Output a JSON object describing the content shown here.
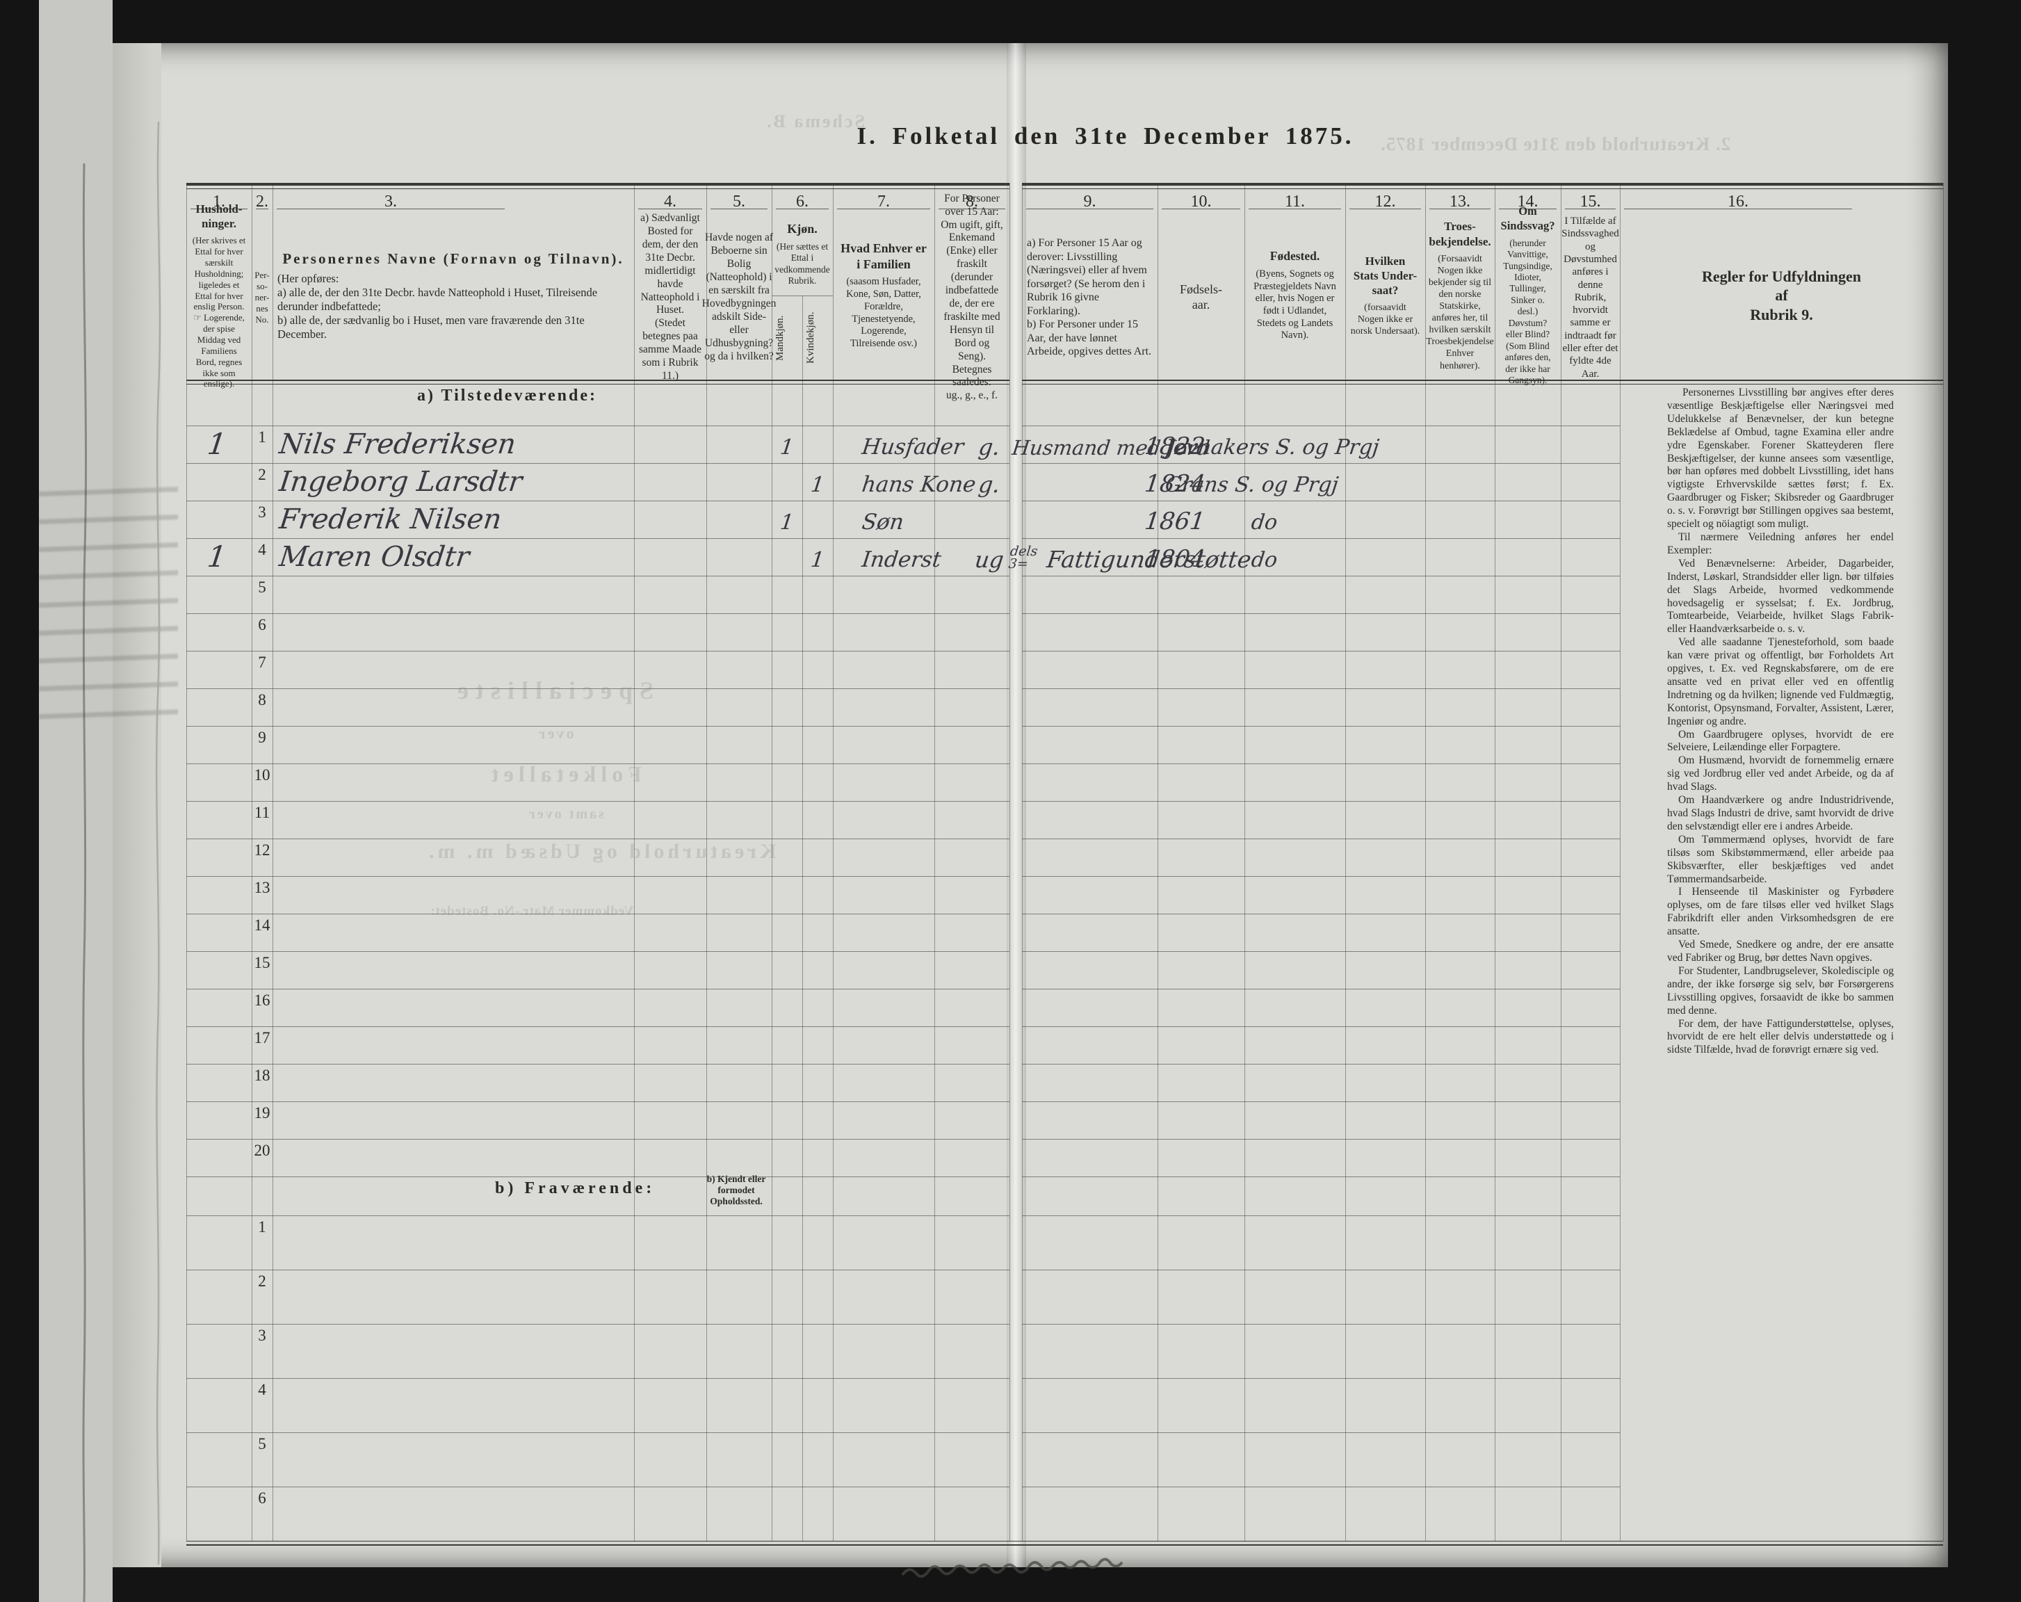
{
  "page": {
    "title": "I. Folketal den 31te December 1875.",
    "section_a_label": "a) Tilstedeværende:",
    "section_b_label": "b) Fraværende:",
    "section_b_sublabel": "b) Kjendt eller formodet Opholdssted."
  },
  "table": {
    "row_count_present": 20,
    "row_count_absent": 6,
    "columns": [
      {
        "no": "1.",
        "title": "Hushold-\nninger.",
        "note": "(Her skrives et Ettal for hver særskilt Husholdning; ligeledes et Ettal for hver enslig Person.\n☞ Logerende, der spise Middag ved Familiens Bord, regnes ikke som enslige)."
      },
      {
        "no": "2.",
        "title": "",
        "note": "Per-\nso-\nner-\nnes\nNo."
      },
      {
        "no": "3.",
        "title": "Personernes Navne (Fornavn og Tilnavn).",
        "note": "(Her opføres:\na) alle de, der den 31te Decbr. havde Natteophold i Huset, Tilreisende derunder indbefattede;\nb) alle de, der sædvanlig bo i Huset, men vare fraværende den 31te December."
      },
      {
        "no": "4.",
        "title": "",
        "note": "a) Sædvanligt Bosted for dem, der den 31te Decbr. midlertidigt havde Natteophold i Huset.\n(Stedet betegnes paa samme Maade som i Rubrik 11.)"
      },
      {
        "no": "5.",
        "title": "",
        "note": "Havde nogen af Beboerne sin Bolig (Natteophold) i en særskilt fra Hovedbygningen adskilt Side- eller Udhusbygning? og da i hvilken?"
      },
      {
        "no": "6.",
        "title": "Kjøn.",
        "note": "(Her sættes et Ettal i vedkommende Rubrik.",
        "sub_labels": [
          "Mandkjøn.",
          "Kvindekjøn."
        ]
      },
      {
        "no": "7.",
        "title": "Hvad Enhver er\ni Familien",
        "note": "(saasom Husfader, Kone, Søn, Datter, Forældre, Tjenestetyende, Logerende, Tilreisende osv.)"
      },
      {
        "no": "8.",
        "title": "",
        "note": "For Personer over 15 Aar: Om ugift, gift, Enkemand (Enke) eller fraskilt (derunder indbefattede de, der ere fraskilte med Hensyn til Bord og Seng).\nBetegnes saaledes:\nug., g., e., f."
      },
      {
        "no": "9.",
        "title": "",
        "note": "a) For Personer 15 Aar og derover: Livsstilling (Næringsvei) eller af hvem forsørget? (Se herom den i Rubrik 16 givne Forklaring).\nb) For Personer under 15 Aar, der have lønnet Arbeide, opgives dettes Art."
      },
      {
        "no": "10.",
        "title": "",
        "note": "Fødsels-\naar."
      },
      {
        "no": "11.",
        "title": "Fødested.",
        "note": "(Byens, Sognets og Præstegjeldets Navn eller, hvis Nogen er født i Udlandet, Stedets og Landets Navn)."
      },
      {
        "no": "12.",
        "title": "Hvilken\nStats Under-\nsaat?",
        "note": "(forsaavidt Nogen ikke er norsk Undersaat)."
      },
      {
        "no": "13.",
        "title": "Troes-\nbekjendelse.",
        "note": "(Forsaavidt Nogen ikke bekjender sig til den norske Statskirke, anføres her, til hvilken særskilt Troesbekjendelse Enhver henhører)."
      },
      {
        "no": "14.",
        "title": "Om\nSindssvag?",
        "note": "(herunder Vanvittige, Tungsindige, Idioter, Tullinger, Sinker o. desl.)\nDøvstum?\neller Blind?\n(Som Blind anføres den, der ikke har Gangsyn)."
      },
      {
        "no": "15.",
        "title": "",
        "note": "I Tilfælde af Sindssvaghed og Døvstumhed anføres i denne Rubrik, hvorvidt samme er indtraadt før eller efter det fyldte 4de Aar."
      },
      {
        "no": "16.",
        "title": "Regler for Udfyldningen\naf\nRubrik 9.",
        "note": ""
      }
    ]
  },
  "entries": [
    {
      "row": 1,
      "household": "1",
      "name": "Nils Frederiksen",
      "male": "1",
      "family_position": "Husfader",
      "marital": "g.",
      "occupation": "Husmand med Jord",
      "birth_year": "1822",
      "birthplace": "Jevnakers S. og Prgj"
    },
    {
      "row": 2,
      "name": "Ingeborg Larsdtr",
      "female": "1",
      "family_position": "hans Kone",
      "marital": "g.",
      "birth_year": "1824",
      "birthplace": "Grans S. og Prgj"
    },
    {
      "row": 3,
      "name": "Frederik Nilsen",
      "male": "1",
      "family_position": "Søn",
      "birth_year": "1861",
      "birthplace": "do"
    },
    {
      "row": 4,
      "household": "1",
      "name": "Maren Olsdtr",
      "female": "1",
      "family_position": "Inderst",
      "marital": "ug",
      "occupation_prefix": "dels\n3=",
      "occupation": "Fattigunderstøtte",
      "birth_year": "1804",
      "birthplace": "do"
    }
  ],
  "rules_column": {
    "paragraphs": [
      "Personernes Livsstilling bør angives efter deres væsentlige Beskjæftigelse eller Næringsvei med Udelukkelse af Benævnelser, der kun betegne Beklædelse af Ombud, tagne Examina eller andre ydre Egenskaber. Forener Skatteyderen flere Beskjæftigelser, der kunne ansees som væsentlige, bør han opføres med dobbelt Livsstilling, idet hans vigtigste Erhvervskilde sættes først; f. Ex. Gaardbruger og Fisker; Skibsreder og Gaardbruger o. s. v. Forøvrigt bør Stillingen opgives saa bestemt, specielt og nöiagtigt som muligt.",
      "Til nærmere Veiledning anføres her endel Exempler:",
      "Ved Benævnelserne: Arbeider, Dagarbeider, Inderst, Løskarl, Strandsidder eller lign. bør tilføies det Slags Arbeide, hvormed vedkommende hovedsagelig er sysselsat; f. Ex. Jordbrug, Tomtearbeide, Veiarbeide, hvilket Slags Fabrik- eller Haandværksarbeide o. s. v.",
      "Ved alle saadanne Tjenesteforhold, som baade kan være privat og offentligt, bør Forholdets Art opgives, t. Ex. ved Regnskabsførere, om de ere ansatte ved en privat eller ved en offentlig Indretning og da hvilken; lignende ved Fuldmægtig, Kontorist, Opsynsmand, Forvalter, Assistent, Lærer, Ingeniør og andre.",
      "Om Gaardbrugere oplyses, hvorvidt de ere Selveiere, Leilændinge eller Forpagtere.",
      "Om Husmænd, hvorvidt de fornemmelig ernære sig ved Jordbrug eller ved andet Arbeide, og da af hvad Slags.",
      "Om Haandværkere og andre Industridrivende, hvad Slags Industri de drive, samt hvorvidt de drive den selvstændigt eller ere i andres Arbeide.",
      "Om Tømmermænd oplyses, hvorvidt de fare tilsøs som Skibstømmermænd, eller arbeide paa Skibsværfter, eller beskjæftiges ved andet Tømmermandsarbeide.",
      "I Henseende til Maskinister og Fyrbødere oplyses, om de fare tilsøs eller ved hvilket Slags Fabrikdrift eller anden Virksomhedsgren de ere ansatte.",
      "Ved Smede, Snedkere og andre, der ere ansatte ved Fabriker og Brug, bør dettes Navn opgives.",
      "For Studenter, Landbrugselever, Skoledisciple og andre, der ikke forsørge sig selv, bør Forsørgerens Livsstilling opgives, forsaavidt de ikke bo sammen med denne.",
      "For dem, der have Fattigunderstøttelse, oplyses, hvorvidt de ere helt eller delvis understøttede og i sidste Tilfælde, hvad de forøvrigt ernære sig ved."
    ]
  },
  "bleedthrough": [
    "Schema B.",
    "2. Kreaturhold den 31te December 1875.",
    "Specialliste",
    "over",
    "Folketallet",
    "samt over",
    "Kreaturhold og Udsæd m. m.",
    "Vedkommer Matr.-No.        Bostedet:"
  ]
}
